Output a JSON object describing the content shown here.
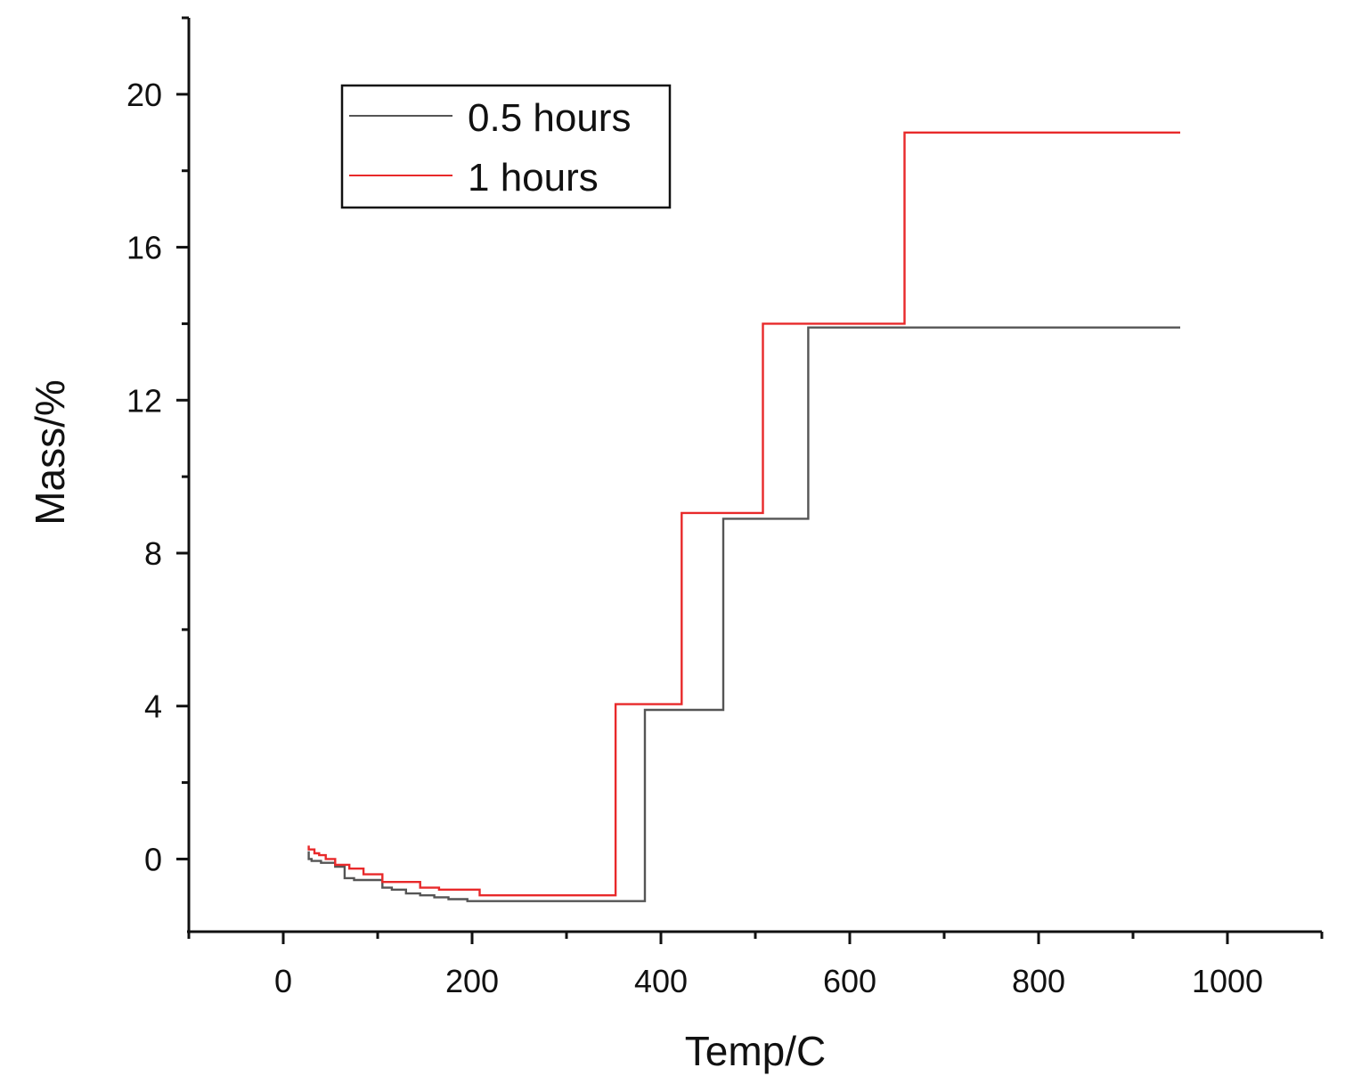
{
  "chart_data": {
    "type": "line",
    "xlabel": "Temp/C",
    "ylabel": "Mass/%",
    "xlim": [
      -100,
      1100
    ],
    "ylim": [
      -1.9,
      22
    ],
    "xticks": [
      0,
      200,
      400,
      600,
      800,
      1000
    ],
    "yticks": [
      0,
      4,
      8,
      12,
      16,
      20
    ],
    "grid": false,
    "legend_position": "top-left",
    "series": [
      {
        "name": "0.5 hours",
        "color": "#555555",
        "x": [
          27,
          27,
          30,
          30,
          40,
          40,
          55,
          55,
          65,
          65,
          75,
          75,
          105,
          105,
          115,
          115,
          130,
          130,
          145,
          145,
          160,
          160,
          175,
          175,
          195,
          195,
          383,
          383,
          466,
          466,
          556,
          556,
          950
        ],
        "y": [
          0.2,
          0.0,
          0.0,
          -0.05,
          -0.05,
          -0.1,
          -0.1,
          -0.2,
          -0.2,
          -0.5,
          -0.5,
          -0.55,
          -0.55,
          -0.75,
          -0.75,
          -0.8,
          -0.8,
          -0.9,
          -0.9,
          -0.95,
          -0.95,
          -1.0,
          -1.0,
          -1.05,
          -1.05,
          -1.1,
          -1.1,
          3.9,
          3.9,
          8.9,
          8.9,
          13.9,
          13.9
        ]
      },
      {
        "name": "1 hours",
        "color": "#e8292a",
        "x": [
          27,
          27,
          33,
          33,
          38,
          38,
          45,
          45,
          55,
          55,
          70,
          70,
          85,
          85,
          105,
          105,
          145,
          145,
          165,
          165,
          208,
          208,
          352,
          352,
          422,
          422,
          508,
          508,
          658,
          658,
          950
        ],
        "y": [
          0.35,
          0.25,
          0.25,
          0.15,
          0.15,
          0.1,
          0.1,
          0.0,
          0.0,
          -0.15,
          -0.15,
          -0.25,
          -0.25,
          -0.4,
          -0.4,
          -0.6,
          -0.6,
          -0.75,
          -0.75,
          -0.8,
          -0.8,
          -0.95,
          -0.95,
          4.05,
          4.05,
          9.05,
          9.05,
          14.0,
          14.0,
          19.0,
          19.0
        ]
      }
    ]
  }
}
